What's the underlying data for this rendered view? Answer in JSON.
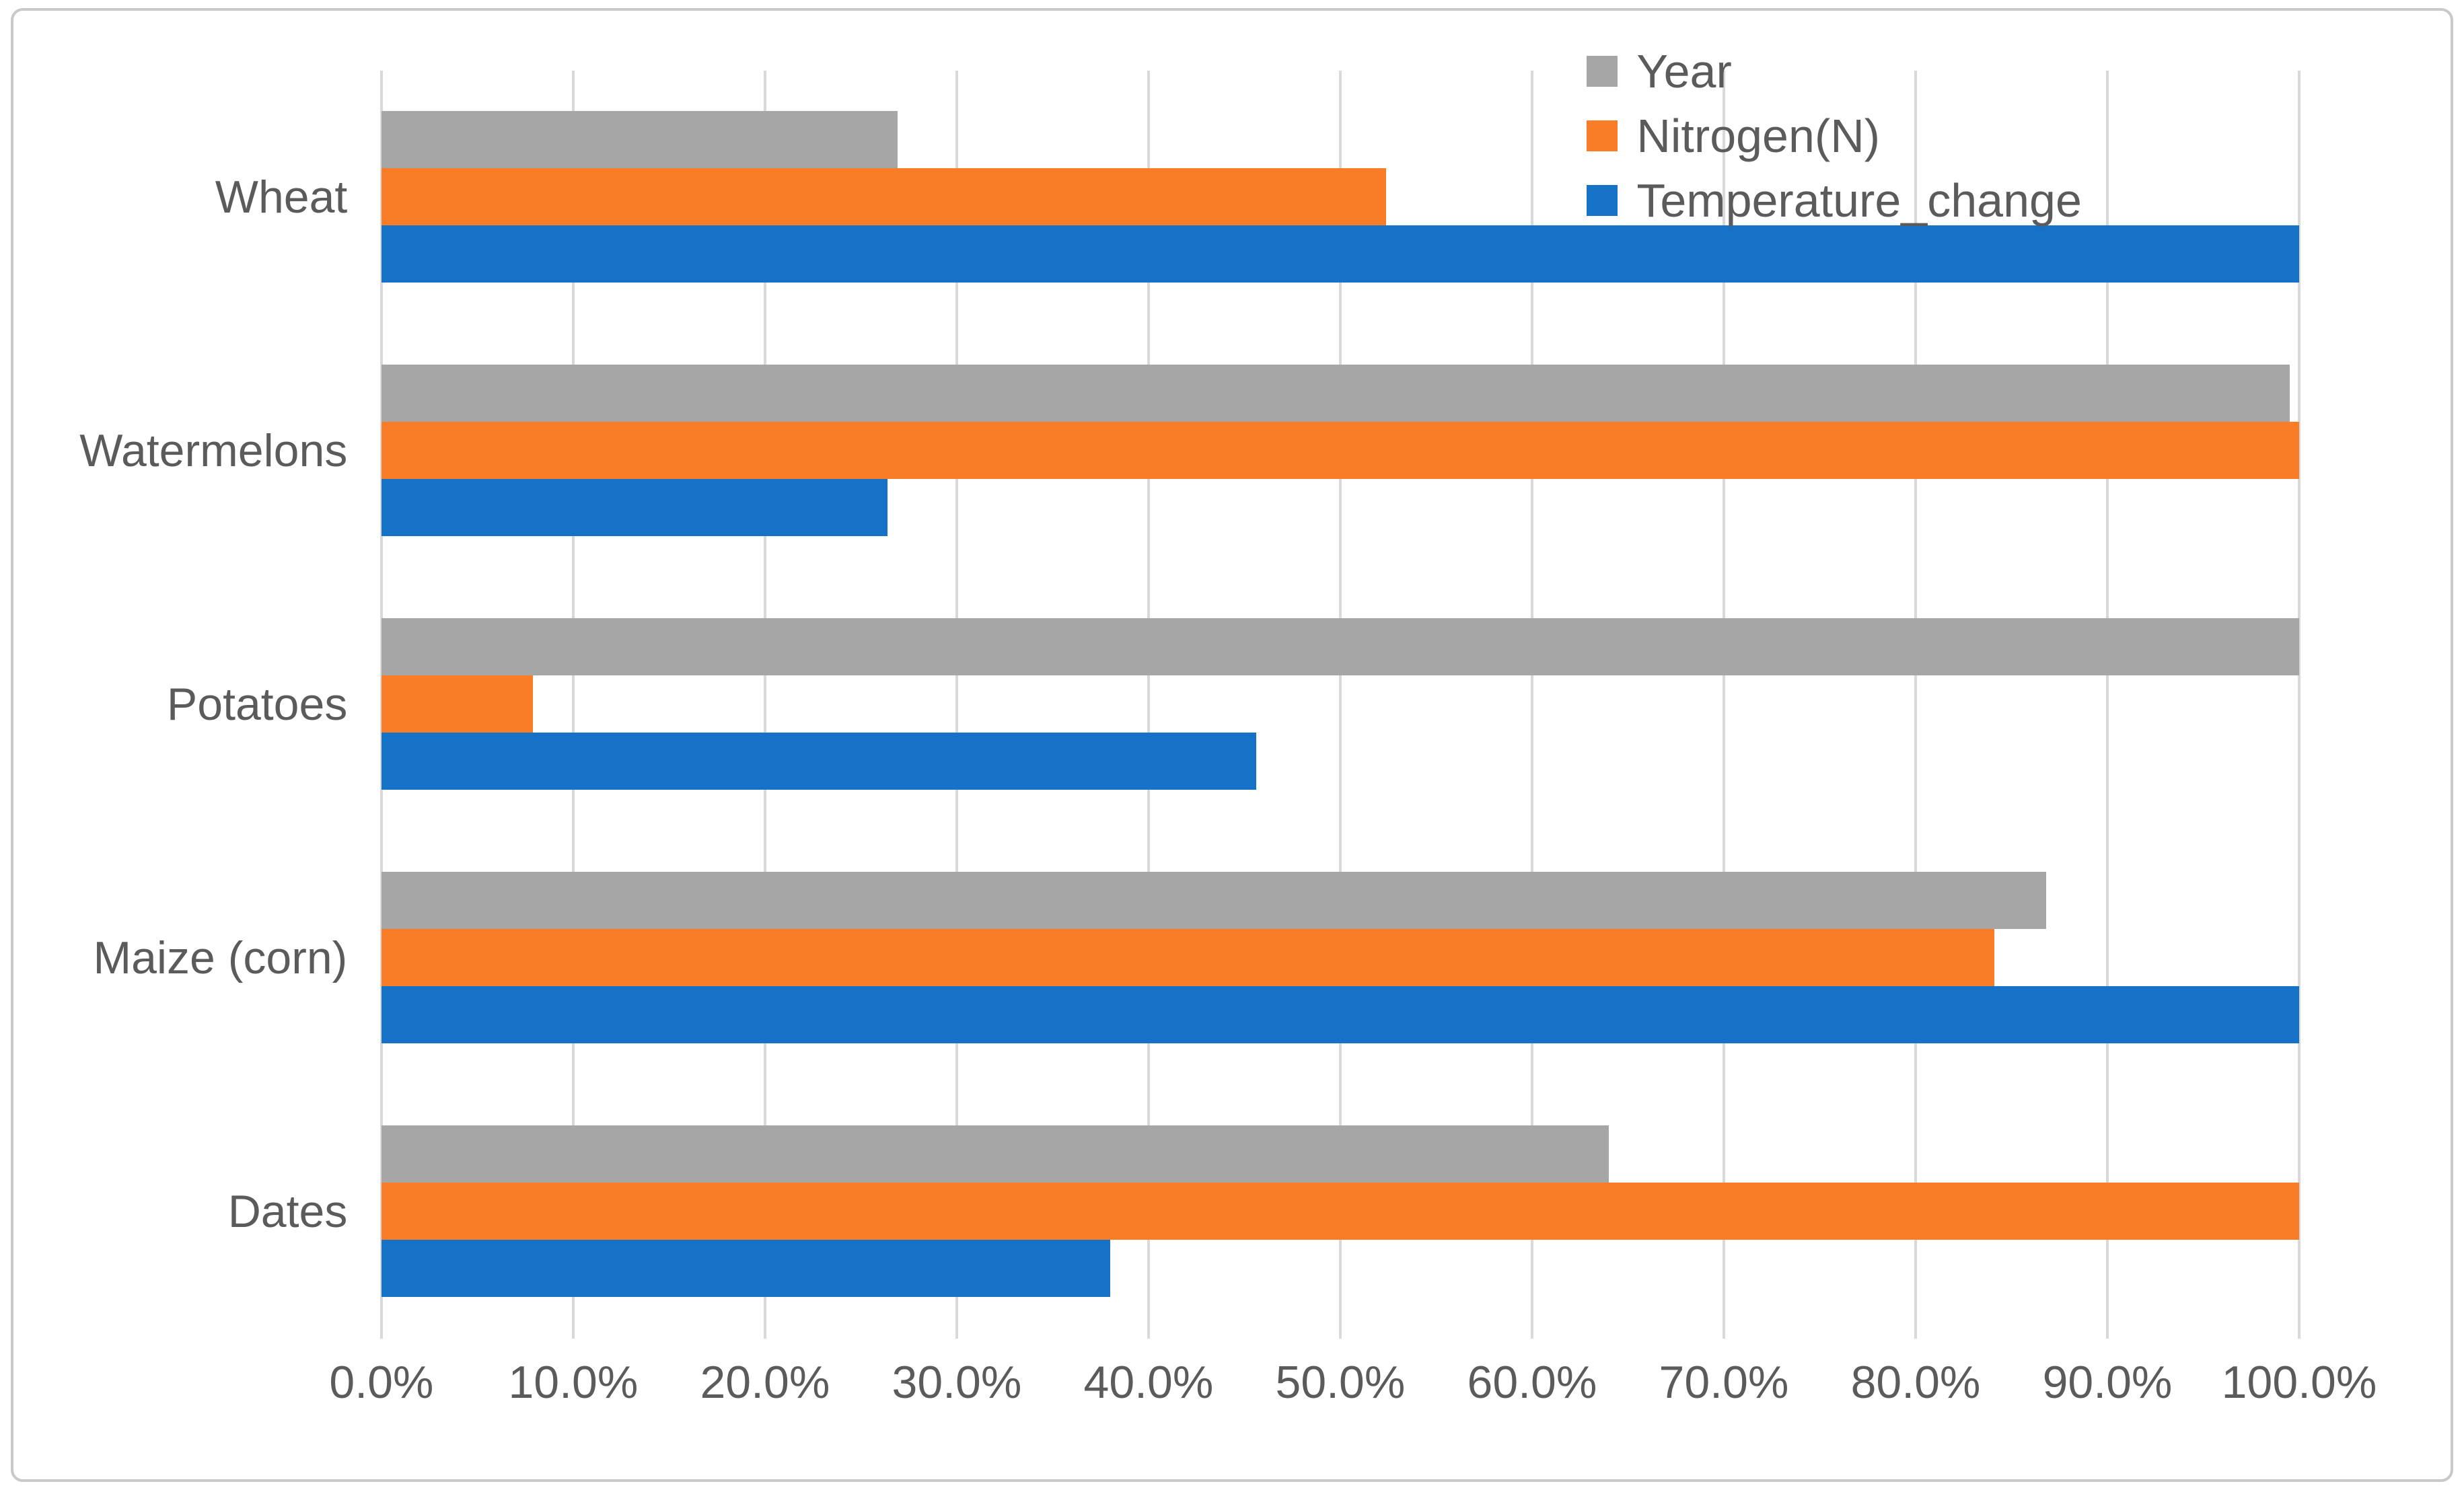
{
  "chart_data": {
    "type": "bar",
    "orientation": "horizontal",
    "title": "",
    "xlabel": "",
    "ylabel": "",
    "categories": [
      "Wheat",
      "Watermelons",
      "Potatoes",
      "Maize (corn)",
      "Dates"
    ],
    "series": [
      {
        "name": "Year",
        "color": "#A6A6A6",
        "values": [
          26.9,
          99.5,
          100,
          86.8,
          64
        ]
      },
      {
        "name": "Nitrogen(N)",
        "color": "#F97D26",
        "values": [
          52.4,
          100,
          7.9,
          84.1,
          100
        ]
      },
      {
        "name": "Temperature_change",
        "color": "#1572C6",
        "values": [
          100,
          26.4,
          45.6,
          100,
          38
        ]
      }
    ],
    "x_ticks": [
      "0.0%",
      "10.0%",
      "20.0%",
      "30.0%",
      "40.0%",
      "50.0%",
      "60.0%",
      "70.0%",
      "80.0%",
      "90.0%",
      "100.0%"
    ],
    "xlim": [
      0,
      100
    ],
    "grid": "vertical-only",
    "gridline_color": "#D9D9D9",
    "axis_text_color": "#5B5B5B",
    "legend": {
      "position": "top-right",
      "entries": [
        "Year",
        "Nitrogen(N)",
        "Temperature_change"
      ]
    }
  }
}
